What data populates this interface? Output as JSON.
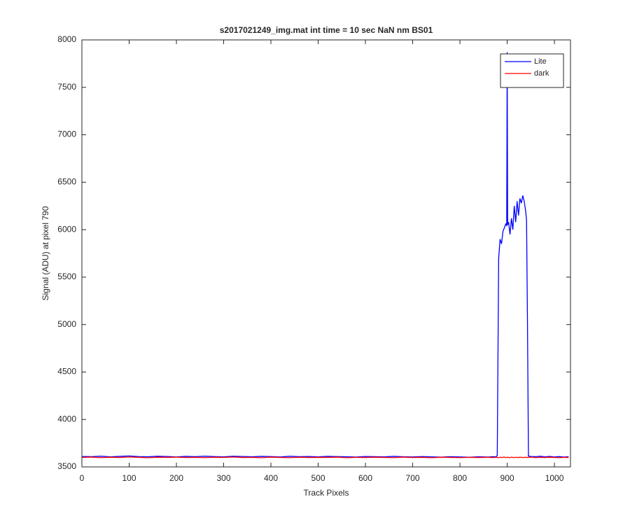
{
  "chart_data": {
    "type": "line",
    "title": "s2017021249_img.mat int time = 10 sec  NaN nm BS01",
    "xlabel": "Track Pixels",
    "ylabel": "Signal (ADU) at pixel 790",
    "x": [
      0,
      20,
      40,
      60,
      80,
      100,
      120,
      140,
      160,
      180,
      200,
      220,
      240,
      260,
      280,
      300,
      320,
      340,
      360,
      380,
      400,
      420,
      440,
      460,
      480,
      500,
      520,
      540,
      560,
      580,
      600,
      620,
      640,
      660,
      680,
      700,
      720,
      740,
      760,
      780,
      800,
      820,
      840,
      860,
      870,
      876,
      879,
      882,
      885,
      888,
      891,
      894,
      897,
      899,
      900,
      901,
      903,
      906,
      909,
      912,
      915,
      918,
      921,
      924,
      927,
      930,
      933,
      936,
      939,
      941,
      943,
      945,
      950,
      960,
      970,
      980,
      990,
      1000,
      1010,
      1020,
      1030
    ],
    "series": [
      {
        "name": "Lite",
        "color": "#0000ff",
        "values": [
          3610,
          3608,
          3613,
          3606,
          3611,
          3615,
          3609,
          3607,
          3612,
          3610,
          3605,
          3611,
          3608,
          3613,
          3609,
          3606,
          3612,
          3610,
          3607,
          3611,
          3609,
          3605,
          3612,
          3608,
          3610,
          3606,
          3611,
          3609,
          3607,
          3604,
          3610,
          3608,
          3606,
          3611,
          3607,
          3605,
          3609,
          3606,
          3603,
          3608,
          3605,
          3602,
          3607,
          3604,
          3608,
          3606,
          3620,
          5700,
          5900,
          5850,
          5980,
          6020,
          6060,
          6040,
          7870,
          6050,
          6080,
          5950,
          6120,
          6000,
          6250,
          6080,
          6300,
          6150,
          6330,
          6280,
          6360,
          6300,
          6200,
          6100,
          5000,
          3615,
          3610,
          3608,
          3612,
          3606,
          3610,
          3605,
          3609,
          3604,
          3607
        ]
      },
      {
        "name": "dark",
        "color": "#ff0000",
        "values": [
          3600,
          3603,
          3598,
          3602,
          3599,
          3604,
          3601,
          3597,
          3602,
          3600,
          3603,
          3599,
          3601,
          3598,
          3602,
          3600,
          3604,
          3599,
          3601,
          3597,
          3603,
          3600,
          3598,
          3602,
          3599,
          3601,
          3600,
          3603,
          3597,
          3601,
          3599,
          3602,
          3600,
          3598,
          3603,
          3599,
          3601,
          3597,
          3602,
          3600,
          3598,
          3601,
          3599,
          3602,
          3598,
          3602,
          3600,
          3597,
          3603,
          3599,
          3601,
          3604,
          3598,
          3600,
          3602,
          3599,
          3601,
          3597,
          3603,
          3600,
          3598,
          3602,
          3599,
          3601,
          3600,
          3603,
          3598,
          3600,
          3602,
          3599,
          3601,
          3600,
          3603,
          3598,
          3601,
          3599,
          3602,
          3600,
          3597,
          3601,
          3599
        ]
      }
    ],
    "xlim": [
      0,
      1034
    ],
    "xticks": [
      0,
      100,
      200,
      300,
      400,
      500,
      600,
      700,
      800,
      900,
      1000
    ],
    "ylim": [
      3500,
      8000
    ],
    "yticks": [
      3500,
      4000,
      4500,
      5000,
      5500,
      6000,
      6500,
      7000,
      7500,
      8000
    ],
    "legend": "upper right"
  }
}
